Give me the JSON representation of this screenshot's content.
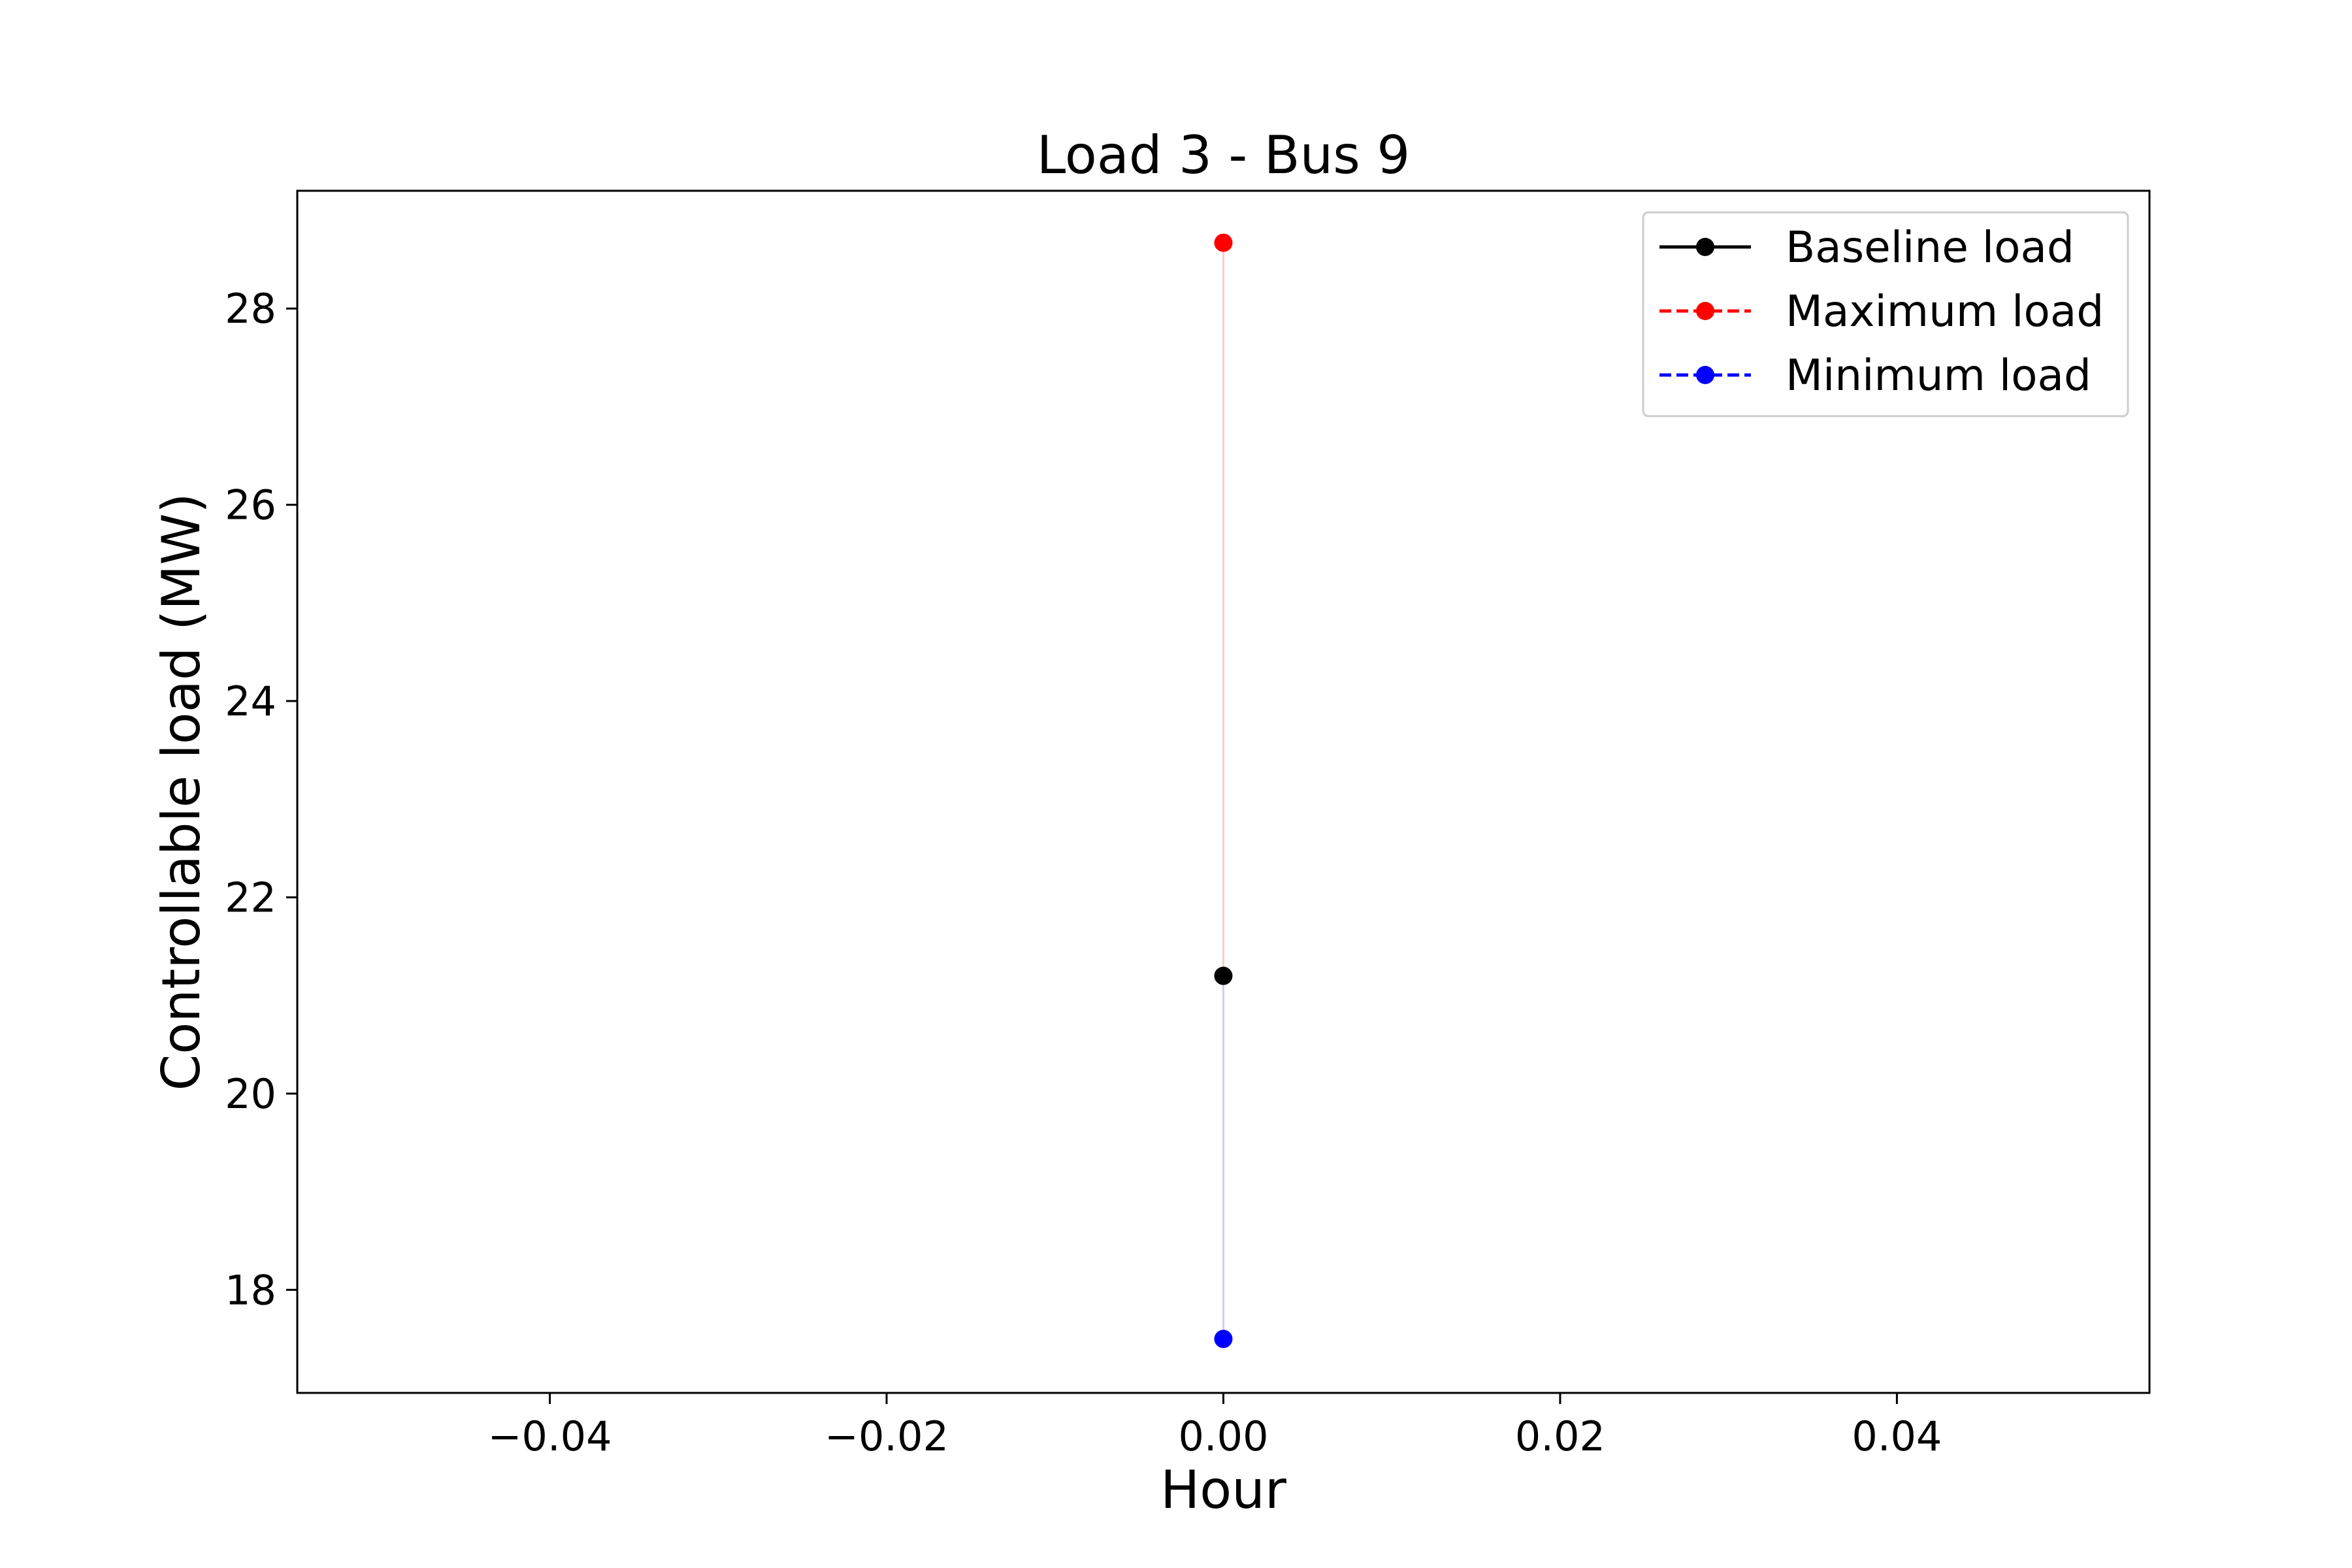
{
  "chart_data": {
    "type": "scatter",
    "title": "Load 3 - Bus 9",
    "xlabel": "Hour",
    "ylabel": "Controllable load (MW)",
    "xlim": [
      -0.055,
      0.055
    ],
    "ylim": [
      16.95,
      29.2
    ],
    "xticks": [
      -0.04,
      -0.02,
      0.0,
      0.02,
      0.04
    ],
    "xtick_labels": [
      "−0.04",
      "−0.02",
      "0.00",
      "0.02",
      "0.04"
    ],
    "yticks": [
      18,
      20,
      22,
      24,
      26,
      28
    ],
    "ytick_labels": [
      "18",
      "20",
      "22",
      "24",
      "26",
      "28"
    ],
    "grid": false,
    "legend_position": "top-right",
    "series": [
      {
        "name": "Baseline load",
        "color": "#000000",
        "linestyle": "solid",
        "x": [
          0
        ],
        "y": [
          21.2
        ]
      },
      {
        "name": "Maximum load",
        "color": "#ff0000",
        "linestyle": "dashed",
        "x": [
          0
        ],
        "y": [
          28.67
        ]
      },
      {
        "name": "Minimum load",
        "color": "#0000ff",
        "linestyle": "dashed",
        "x": [
          0
        ],
        "y": [
          17.5
        ]
      }
    ],
    "range_band": {
      "x": 0,
      "from": 17.5,
      "to": 28.67,
      "upper_color": "#ffcccc",
      "lower_color": "#ccccff"
    }
  }
}
